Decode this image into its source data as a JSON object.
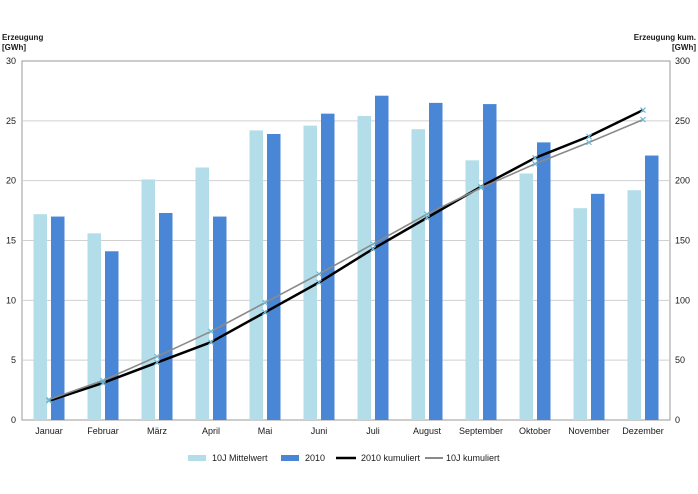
{
  "chart_data": {
    "type": "bar",
    "categories": [
      "Januar",
      "Februar",
      "März",
      "April",
      "Mai",
      "Juni",
      "Juli",
      "August",
      "September",
      "Oktober",
      "November",
      "Dezember"
    ],
    "series": [
      {
        "name": "10J Mittelwert",
        "type": "bar",
        "axis": "left",
        "color": "#b3dde8",
        "values": [
          17.2,
          15.6,
          20.1,
          21.1,
          24.2,
          24.6,
          25.4,
          24.3,
          21.7,
          20.6,
          17.7,
          19.2
        ]
      },
      {
        "name": "2010",
        "type": "bar",
        "axis": "left",
        "color": "#4a86d6",
        "values": [
          17.0,
          14.1,
          17.3,
          17.0,
          23.9,
          25.6,
          27.1,
          26.5,
          26.4,
          23.2,
          18.9,
          22.1
        ]
      },
      {
        "name": "2010 kumuliert",
        "type": "line",
        "axis": "right",
        "color": "#000000",
        "values": [
          16,
          31,
          48,
          65,
          90,
          115,
          143,
          169,
          195,
          219,
          237,
          259
        ]
      },
      {
        "name": "10J kumuliert",
        "type": "line",
        "axis": "right",
        "color": "#8a8a8a",
        "values": [
          17,
          33,
          53,
          74,
          98,
          122,
          147,
          172,
          194,
          214,
          232,
          251
        ]
      }
    ],
    "yleft": {
      "title_line1": "Erzeugung",
      "title_line2": "[GWh]",
      "lim": [
        0,
        30
      ],
      "ticks": [
        0,
        5,
        10,
        15,
        20,
        25,
        30
      ]
    },
    "yright": {
      "title_line1": "Erzeugung kum.",
      "title_line2": "[GWh]",
      "lim": [
        0,
        300
      ],
      "ticks": [
        0,
        50,
        100,
        150,
        200,
        250,
        300
      ]
    },
    "grid": true,
    "legend_position": "bottom"
  }
}
